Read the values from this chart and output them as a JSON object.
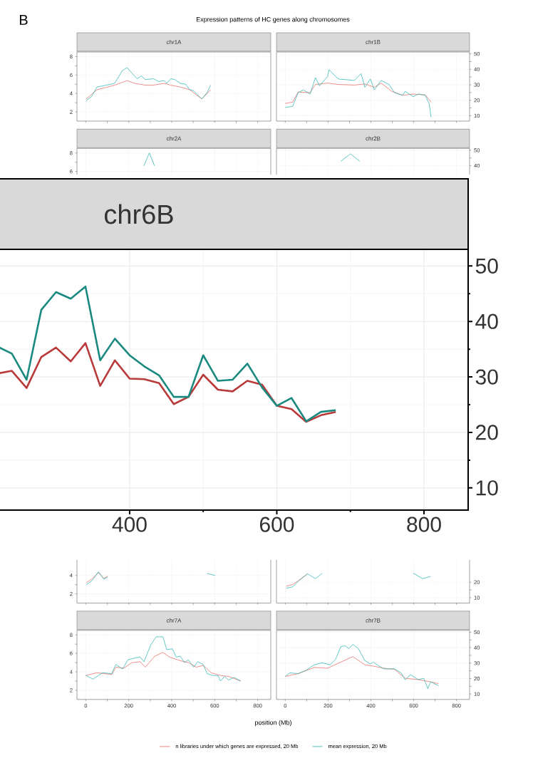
{
  "chart_data": [
    {
      "type": "line",
      "title": "chr1A",
      "annotations": [
        "B",
        "Expression patterns of HC genes along chromosomes"
      ],
      "xlim": [
        -41,
        861
      ],
      "xticks": [
        0,
        200,
        400,
        600,
        800
      ],
      "ylim": [
        1,
        8.5
      ],
      "yticks": [
        2,
        4,
        6,
        8
      ],
      "grid": true,
      "tick_labels": "y",
      "series": [
        {
          "color": "#e8605a",
          "x": [
            2,
            52,
            134,
            192,
            227,
            277,
            315,
            365,
            396,
            440,
            484,
            540,
            581
          ],
          "values": [
            3.4,
            4.4,
            4.9,
            5.4,
            5.1,
            4.9,
            4.9,
            5.1,
            4.9,
            4.7,
            4.4,
            3.4,
            4.4
          ]
        },
        {
          "color": "#1fb0b0",
          "x": [
            2,
            28,
            52,
            96,
            134,
            171,
            192,
            227,
            240,
            259,
            277,
            315,
            340,
            365,
            377,
            396,
            415,
            440,
            465,
            484,
            502,
            540,
            565,
            581
          ],
          "values": [
            3.2,
            3.7,
            4.7,
            4.9,
            5.1,
            6.5,
            6.8,
            5.9,
            5.6,
            5.9,
            5.5,
            5.6,
            5.3,
            5.4,
            5.1,
            5.6,
            5.5,
            5.1,
            5.0,
            4.4,
            4.3,
            3.4,
            4.1,
            4.9
          ]
        }
      ]
    },
    {
      "type": "line",
      "title": "chr1B",
      "xlim": [
        -41,
        861
      ],
      "xticks": [
        0,
        200,
        400,
        600,
        800
      ],
      "y2lim": [
        6.5,
        51.2
      ],
      "y2ticks": [
        10,
        20,
        30,
        40,
        50
      ],
      "grid": true,
      "tick_labels": "y",
      "series": [
        {
          "color": "#e8605a",
          "axis": "y2",
          "x": [
            0,
            35,
            60,
            116,
            141,
            198,
            248,
            323,
            372,
            416,
            448,
            497,
            548,
            598,
            654,
            681
          ],
          "values": [
            17.9,
            18.8,
            25.3,
            24.9,
            30.2,
            31.1,
            30.2,
            29.8,
            30.5,
            28.4,
            31.1,
            25.8,
            23.2,
            24,
            23.5,
            18.8
          ]
        },
        {
          "color": "#1fb0b0",
          "axis": "y2",
          "x": [
            0,
            35,
            60,
            85,
            116,
            141,
            160,
            198,
            204,
            248,
            285,
            323,
            354,
            372,
            398,
            416,
            448,
            485,
            510,
            548,
            560,
            598,
            622,
            654,
            672,
            681
          ],
          "values": [
            15.3,
            16.1,
            24.9,
            26.7,
            24,
            34.6,
            29.3,
            35.4,
            39.8,
            33.7,
            33.3,
            32.8,
            37.2,
            28.4,
            33.7,
            26.7,
            32.8,
            30.2,
            24.9,
            23.2,
            25.8,
            22.3,
            24,
            23.2,
            17.9,
            9.1
          ]
        }
      ]
    },
    {
      "type": "line",
      "title": "chr2A",
      "xlim": [
        -41,
        861
      ],
      "xticks": [
        0,
        200,
        400,
        600,
        800
      ],
      "ylim": [
        1,
        8.5
      ],
      "yticks": [
        6,
        8
      ],
      "grid": true,
      "tick_labels": "y",
      "series": [
        {
          "color": "#1fb0b0",
          "x": [
            270,
            296,
            320
          ],
          "values": [
            6.6,
            8.0,
            6.6
          ]
        }
      ]
    },
    {
      "type": "line",
      "title": "chr2B",
      "xlim": [
        -41,
        861
      ],
      "xticks": [
        0,
        200,
        400,
        600,
        800
      ],
      "y2lim": [
        6.5,
        51.2
      ],
      "y2ticks": [
        40,
        50
      ],
      "grid": true,
      "tick_labels": "y",
      "series": [
        {
          "color": "#1fb0b0",
          "axis": "y2",
          "x": [
            260,
            304,
            348
          ],
          "values": [
            42.9,
            47.7,
            42.9
          ]
        }
      ]
    },
    {
      "type": "line",
      "xlim": [
        -41,
        861
      ],
      "xticks": [
        0,
        200,
        400,
        600,
        800
      ],
      "ylim": [
        1,
        8.5
      ],
      "yticks": [
        2,
        4
      ],
      "grid": true,
      "tick_labels": "y",
      "series": [
        {
          "color": "#e8605a",
          "x": [
            2,
            28,
            59,
            84,
            102
          ],
          "values": [
            3.2,
            3.6,
            4.3,
            3.7,
            3.9
          ]
        },
        {
          "color": "#1fb0b0",
          "x": [
            2,
            28,
            59,
            84,
            102,
            121,
            565,
            602
          ],
          "values": [
            3.0,
            3.4,
            4.4,
            3.6,
            3.8,
            null,
            4.2,
            4.0
          ]
        }
      ]
    },
    {
      "type": "line",
      "xlim": [
        -41,
        861
      ],
      "xticks": [
        0,
        200,
        400,
        600,
        800
      ],
      "y2lim": [
        6.5,
        51.2
      ],
      "y2ticks": [
        10,
        20
      ],
      "grid": true,
      "tick_labels": "y",
      "series": [
        {
          "color": "#e8605a",
          "axis": "y2",
          "x": [
            4,
            35,
            60,
            104
          ],
          "values": [
            17.4,
            18.5,
            20.9,
            25.4
          ]
        },
        {
          "color": "#1fb0b0",
          "axis": "y2",
          "x": [
            4,
            35,
            60,
            104,
            141,
            173,
            198,
            598,
            641,
            679
          ],
          "values": [
            16.1,
            17.0,
            20.5,
            25.4,
            22.3,
            25.8,
            null,
            25.8,
            22.3,
            23.7
          ]
        }
      ]
    },
    {
      "type": "line",
      "title": "chr7A",
      "xlabel": "position (Mb)",
      "legend": "bottom",
      "xlim": [
        -41,
        861
      ],
      "xticks": [
        0,
        200,
        400,
        600,
        800
      ],
      "ylim": [
        1,
        8.5
      ],
      "yticks": [
        2,
        4,
        6,
        8
      ],
      "grid": true,
      "series": [
        {
          "name": "n libraries under which genes are expressed, 20 Mb",
          "color": "#e8605a",
          "x": [
            0,
            52,
            121,
            140,
            178,
            215,
            253,
            277,
            321,
            359,
            390,
            440,
            477,
            515,
            546,
            584,
            627,
            665,
            721
          ],
          "values": [
            3.6,
            3.9,
            3.7,
            4.5,
            4.4,
            5.0,
            5.1,
            4.5,
            5.7,
            6.1,
            5.6,
            5.2,
            5.0,
            4.5,
            4.7,
            3.9,
            3.6,
            3.5,
            3.0
          ]
        },
        {
          "name": "mean expression, 20 Mb",
          "color": "#1fb0b0",
          "x": [
            0,
            34,
            78,
            121,
            140,
            171,
            196,
            228,
            253,
            271,
            302,
            328,
            359,
            377,
            403,
            421,
            440,
            459,
            477,
            502,
            521,
            546,
            565,
            590,
            615,
            627,
            646,
            665,
            690,
            721
          ],
          "values": [
            3.6,
            3.2,
            3.9,
            3.8,
            4.8,
            4.3,
            5.3,
            5.5,
            5.6,
            5.1,
            6.9,
            7.8,
            7.8,
            6.4,
            6.5,
            5.6,
            5.7,
            5.0,
            5.3,
            4.5,
            5.1,
            4.8,
            3.8,
            3.6,
            3.6,
            3.0,
            3.5,
            3.1,
            3.4,
            3.0
          ]
        }
      ]
    },
    {
      "type": "line",
      "title": "chr7B",
      "xlim": [
        -41,
        861
      ],
      "xticks": [
        0,
        200,
        400,
        600,
        800
      ],
      "y2lim": [
        6.5,
        51.2
      ],
      "y2ticks": [
        10,
        20,
        30,
        40,
        50
      ],
      "grid": true,
      "series": [
        {
          "color": "#e8605a",
          "axis": "y2",
          "x": [
            0,
            60,
            135,
            198,
            260,
            316,
            372,
            410,
            460,
            510,
            560,
            622,
            679,
            716
          ],
          "values": [
            21.4,
            23.2,
            27.2,
            26.7,
            30.7,
            34.2,
            28.9,
            28.1,
            26.7,
            26,
            20.2,
            19.3,
            17.9,
            16.7
          ]
        },
        {
          "color": "#1fb0b0",
          "axis": "y2",
          "x": [
            0,
            22,
            60,
            98,
            135,
            172,
            210,
            235,
            260,
            279,
            297,
            316,
            341,
            372,
            397,
            410,
            435,
            460,
            510,
            541,
            560,
            585,
            622,
            647,
            666,
            679,
            716
          ],
          "values": [
            21.4,
            23.7,
            23.2,
            25.4,
            28.9,
            30.2,
            28.9,
            32.5,
            40.7,
            41.2,
            39.5,
            42.1,
            39.5,
            31.6,
            29.5,
            30.7,
            28.4,
            26.3,
            26.3,
            23.7,
            19.3,
            22.5,
            19.3,
            20.2,
            13.5,
            17.9,
            15.4
          ]
        }
      ]
    },
    {
      "type": "line",
      "title": "chr6B",
      "xlim": [
        220,
        860
      ],
      "xticks": [
        400,
        600,
        800
      ],
      "y2lim": [
        6,
        53
      ],
      "y2ticks": [
        10,
        20,
        30,
        40,
        50
      ],
      "grid": true,
      "series": [
        {
          "color": "#b83a3a",
          "axis": "y2",
          "x": [
            220,
            240,
            260,
            280,
            300,
            320,
            340,
            360,
            380,
            400,
            420,
            440,
            460,
            480,
            500,
            520,
            540,
            560,
            580,
            600,
            620,
            640,
            660,
            680
          ],
          "values": [
            30.6,
            31.1,
            28.0,
            33.6,
            35.3,
            32.8,
            36.1,
            28.4,
            33.0,
            29.7,
            29.6,
            28.9,
            25.1,
            26.4,
            30.4,
            27.7,
            27.4,
            29.3,
            28.6,
            24.8,
            24.2,
            21.9,
            23.1,
            23.7
          ]
        },
        {
          "color": "#1a8a80",
          "axis": "y2",
          "x": [
            220,
            240,
            260,
            280,
            300,
            320,
            340,
            360,
            380,
            400,
            420,
            440,
            460,
            480,
            500,
            520,
            540,
            560,
            580,
            600,
            620,
            640,
            660,
            680
          ],
          "values": [
            35.5,
            34.2,
            29.5,
            42.1,
            45.3,
            44.1,
            46.3,
            33.0,
            36.9,
            33.9,
            31.9,
            30.3,
            26.4,
            26.4,
            33.9,
            29.3,
            29.5,
            32.4,
            28.1,
            24.8,
            26.2,
            22.0,
            23.7,
            24.0
          ]
        }
      ]
    }
  ]
}
